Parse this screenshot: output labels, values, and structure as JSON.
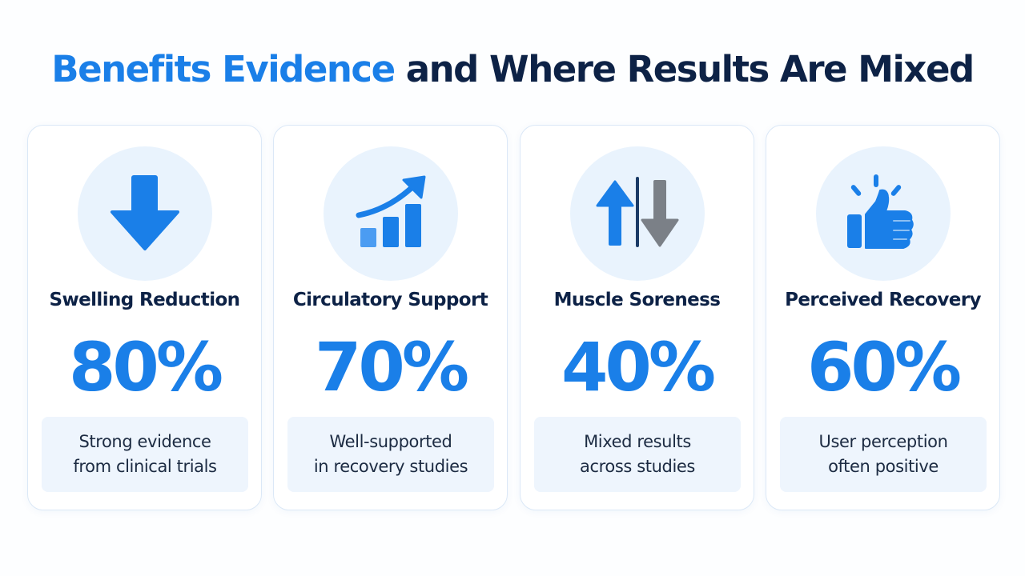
{
  "title": {
    "highlight": "Benefits Evidence",
    "rest": "and Where Results Are Mixed"
  },
  "colors": {
    "accent": "#1a7fe8",
    "dark": "#0d2246",
    "icon_circle": "#e9f3fd",
    "desc_box": "#eef5fd",
    "gray_arrow": "#7b8087"
  },
  "cards": [
    {
      "icon": "arrow-down-icon",
      "title": "Swelling Reduction",
      "value": "80%",
      "description": "Strong evidence\nfrom clinical trials"
    },
    {
      "icon": "trend-up-chart-icon",
      "title": "Circulatory Support",
      "value": "70%",
      "description": "Well-supported\nin recovery studies"
    },
    {
      "icon": "up-down-arrows-icon",
      "title": "Muscle Soreness",
      "value": "40%",
      "description": "Mixed results\nacross studies"
    },
    {
      "icon": "thumbs-up-icon",
      "title": "Perceived Recovery",
      "value": "60%",
      "description": "User perception\noften positive"
    }
  ]
}
